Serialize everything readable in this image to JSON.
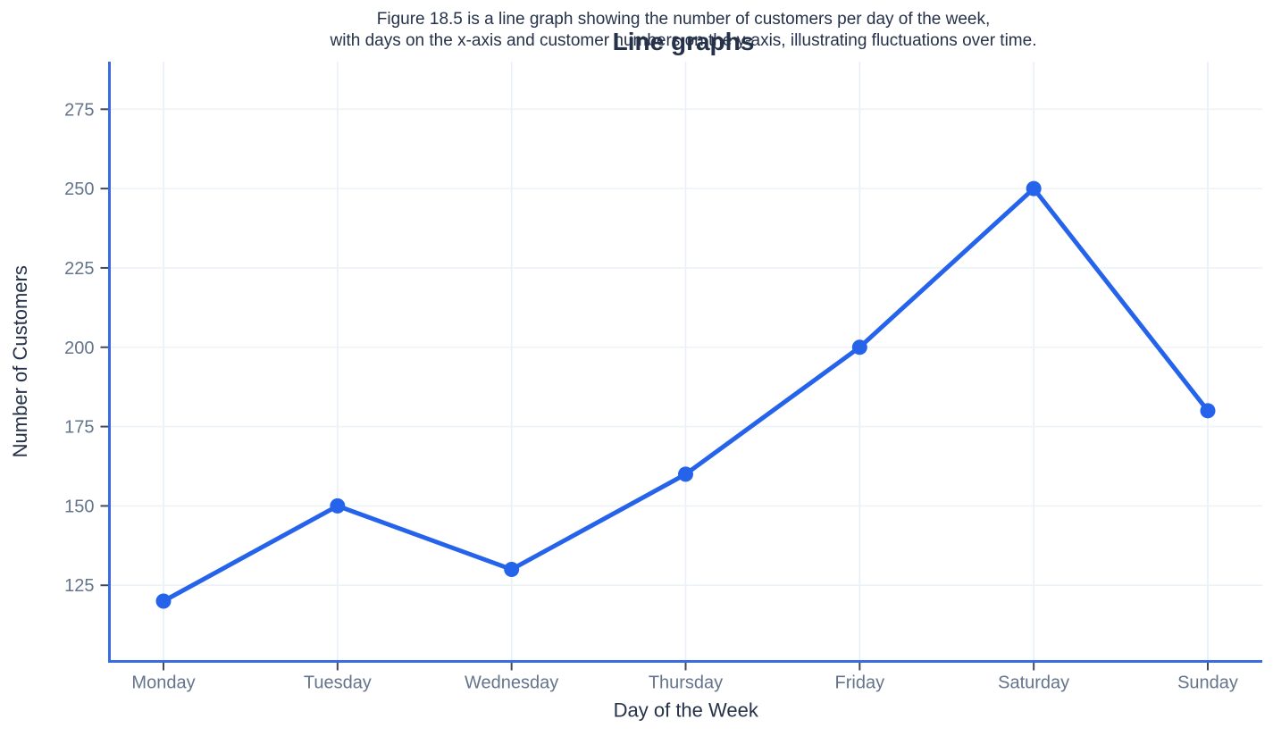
{
  "chart_data": {
    "type": "line",
    "title": "Line graphs",
    "caption": {
      "line1": "Figure 18.5 is a line graph showing the number of customers per day of the week,",
      "line2": "with days on the x-axis and customer numbers on the y-axis, illustrating fluctuations over time."
    },
    "categories": [
      "Monday",
      "Tuesday",
      "Wednesday",
      "Thursday",
      "Friday",
      "Saturday",
      "Sunday"
    ],
    "series": [
      {
        "name": "Number of Customers",
        "values": [
          120,
          150,
          130,
          160,
          200,
          250,
          180
        ]
      }
    ],
    "xlabel": "Day of the Week",
    "ylabel": "Number of Customers",
    "y_ticks": [
      125,
      150,
      175,
      200,
      225,
      250,
      275
    ],
    "ylim": [
      101,
      290
    ],
    "grid": true,
    "legend": "none",
    "colors": {
      "line": "#2563eb",
      "marker": "#2563eb",
      "axis": "#3a6be0",
      "tick": "#3f4a5c",
      "tick_label": "#64748b",
      "axis_label": "#26324a",
      "title": "#26324a",
      "grid_horizontal": "#edf2f7",
      "grid_vertical": "#e8eefa",
      "background": "#ffffff"
    }
  }
}
